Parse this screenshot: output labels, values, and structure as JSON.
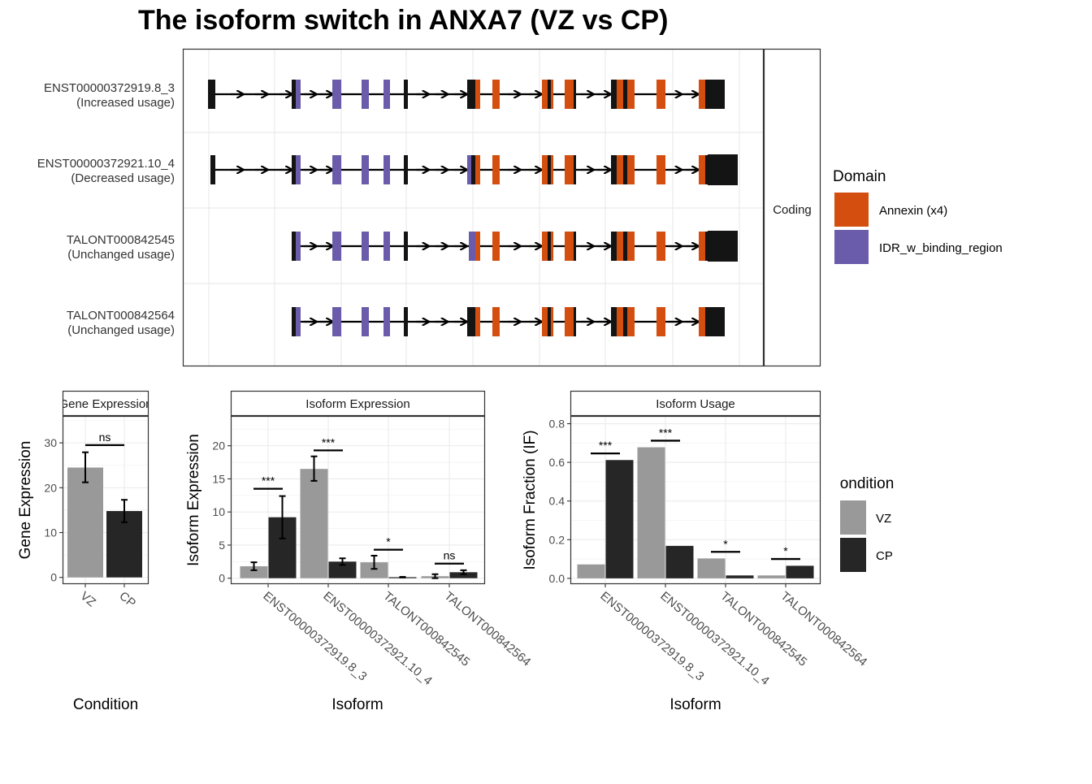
{
  "title": "The isoform switch in ANXA7 (VZ vs CP)",
  "colors": {
    "annexin": "#D44E0F",
    "idr": "#6A5CAA",
    "exon": "#141414",
    "vz": "#999999",
    "cp": "#262626",
    "grid": "#ebebeb"
  },
  "structure": {
    "facet_label": "Coding",
    "isoforms": [
      {
        "id": "ENST00000372919.8_3",
        "usage": "(Increased usage)",
        "first_exon": true,
        "big_tail": false
      },
      {
        "id": "ENST00000372921.10_4",
        "usage": "(Decreased usage)",
        "first_exon": true,
        "big_tail": true
      },
      {
        "id": "TALONT000842545",
        "usage": "(Unchanged usage)",
        "first_exon": false,
        "big_tail": true
      },
      {
        "id": "TALONT000842564",
        "usage": "(Unchanged usage)",
        "first_exon": false,
        "big_tail": false
      }
    ]
  },
  "domain_legend": {
    "title": "Domain",
    "items": [
      {
        "label": "Annexin (x4)",
        "color": "#D44E0F"
      },
      {
        "label": "IDR_w_binding_region",
        "color": "#6A5CAA"
      }
    ]
  },
  "condition_legend": {
    "title": "Condition",
    "items": [
      {
        "label": "VZ",
        "color": "#999999"
      },
      {
        "label": "CP",
        "color": "#262626"
      }
    ]
  },
  "chart_data": [
    {
      "type": "bar",
      "title": "Gene Expression",
      "xlabel": "Condition",
      "ylabel": "Gene Expression",
      "categories": [
        "VZ",
        "CP"
      ],
      "values": [
        24.5,
        14.8
      ],
      "errors": [
        [
          21.2,
          27.9
        ],
        [
          12.3,
          17.3
        ]
      ],
      "ylim": [
        -1.5,
        36
      ],
      "yticks": [
        0,
        10,
        20,
        30
      ],
      "significance": [
        {
          "label": "ns",
          "y": 29.5
        }
      ]
    },
    {
      "type": "bar",
      "title": "Isoform Expression",
      "xlabel": "Isoform",
      "ylabel": "Isoform Expression",
      "categories": [
        "ENST00000372919.8_3",
        "ENST00000372921.10_4",
        "TALONT000842545",
        "TALONT000842564"
      ],
      "series": [
        {
          "name": "VZ",
          "values": [
            1.8,
            16.5,
            2.4,
            0.3
          ],
          "errors": [
            [
              1.2,
              2.4
            ],
            [
              14.7,
              18.4
            ],
            [
              1.4,
              3.4
            ],
            [
              0.0,
              0.6
            ]
          ]
        },
        {
          "name": "CP",
          "values": [
            9.2,
            2.5,
            0.15,
            0.9
          ],
          "errors": [
            [
              6.0,
              12.4
            ],
            [
              2.0,
              3.0
            ],
            [
              0.1,
              0.2
            ],
            [
              0.6,
              1.2
            ]
          ]
        }
      ],
      "ylim": [
        -0.9,
        24.5
      ],
      "yticks": [
        0,
        5,
        10,
        15,
        20
      ],
      "significance": [
        {
          "label": "***",
          "y": 13.5
        },
        {
          "label": "***",
          "y": 19.3
        },
        {
          "label": "*",
          "y": 4.3
        },
        {
          "label": "ns",
          "y": 2.2
        }
      ]
    },
    {
      "type": "bar",
      "title": "Isoform Usage",
      "xlabel": "Isoform",
      "ylabel": "Isoform Fraction (IF)",
      "categories": [
        "ENST00000372919.8_3",
        "ENST00000372921.10_4",
        "TALONT000842545",
        "TALONT000842564"
      ],
      "series": [
        {
          "name": "VZ",
          "values": [
            0.072,
            0.678,
            0.103,
            0.015
          ]
        },
        {
          "name": "CP",
          "values": [
            0.612,
            0.168,
            0.015,
            0.065
          ]
        }
      ],
      "ylim": [
        -0.03,
        0.84
      ],
      "yticks": [
        0.0,
        0.2,
        0.4,
        0.6,
        0.8
      ],
      "ytick_labels": [
        "0.0",
        "0.2",
        "0.4",
        "0.6",
        "0.8"
      ],
      "significance": [
        {
          "label": "***",
          "y": 0.646
        },
        {
          "label": "***",
          "y": 0.712
        },
        {
          "label": "*",
          "y": 0.137
        },
        {
          "label": "*",
          "y": 0.1
        }
      ]
    }
  ]
}
